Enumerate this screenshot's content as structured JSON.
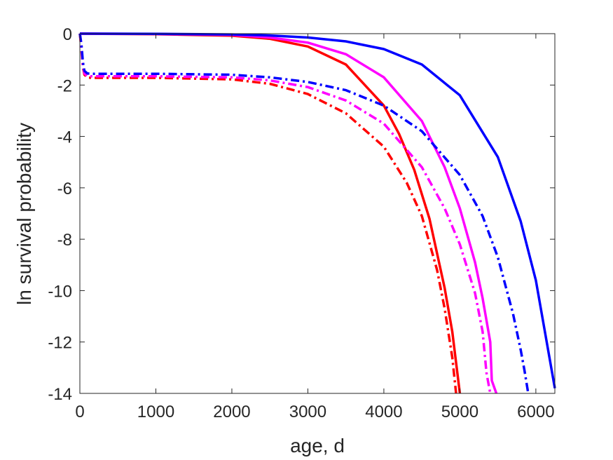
{
  "chart_data": {
    "type": "line",
    "title": "",
    "xlabel": "age, d",
    "ylabel": "ln survival probability",
    "xlim": [
      0,
      6250
    ],
    "ylim": [
      -14,
      0
    ],
    "xticks": [
      0,
      1000,
      2000,
      3000,
      4000,
      5000,
      6000
    ],
    "xtick_labels": [
      "0",
      "1000",
      "2000",
      "3000",
      "4000",
      "5000",
      "6000"
    ],
    "yticks": [
      0,
      -2,
      -4,
      -6,
      -8,
      -10,
      -12,
      -14
    ],
    "ytick_labels": [
      "0",
      "-2",
      "-4",
      "-6",
      "-8",
      "-10",
      "-12",
      "-14"
    ],
    "grid": false,
    "legend": "none",
    "series": [
      {
        "color": "#ff0000",
        "style": "solid",
        "x": [
          0,
          1000,
          2000,
          2500,
          3000,
          3500,
          4000,
          4200,
          4400,
          4600,
          4800,
          4900,
          5000
        ],
        "y": [
          0,
          -0.02,
          -0.08,
          -0.2,
          -0.5,
          -1.2,
          -2.8,
          -3.9,
          -5.3,
          -7.2,
          -9.9,
          -11.6,
          -14
        ]
      },
      {
        "color": "#ff00ff",
        "style": "solid",
        "x": [
          0,
          1000,
          2000,
          2500,
          3000,
          3500,
          4000,
          4500,
          4800,
          5000,
          5200,
          5300,
          5400,
          5420,
          5480
        ],
        "y": [
          0,
          -0.01,
          -0.05,
          -0.15,
          -0.35,
          -0.8,
          -1.7,
          -3.4,
          -5.2,
          -6.8,
          -8.9,
          -10.3,
          -12.0,
          -13.5,
          -14
        ]
      },
      {
        "color": "#0000ff",
        "style": "solid",
        "x": [
          0,
          1000,
          2000,
          2500,
          3000,
          3500,
          4000,
          4500,
          5000,
          5500,
          5800,
          6000,
          6250
        ],
        "y": [
          0,
          -0.005,
          -0.03,
          -0.07,
          -0.15,
          -0.3,
          -0.6,
          -1.2,
          -2.4,
          -4.8,
          -7.3,
          -9.6,
          -13.8
        ]
      },
      {
        "color": "#ff0000",
        "style": "dashdot",
        "x": [
          0,
          20,
          40,
          60,
          100,
          150,
          1000,
          2000,
          2500,
          3000,
          3500,
          4000,
          4300,
          4500,
          4700,
          4800,
          4900,
          4950
        ],
        "y": [
          0,
          -0.6,
          -1.3,
          -1.6,
          -1.7,
          -1.72,
          -1.72,
          -1.78,
          -1.95,
          -2.35,
          -3.1,
          -4.4,
          -5.8,
          -7.1,
          -9.2,
          -10.7,
          -12.6,
          -14
        ]
      },
      {
        "color": "#ff00ff",
        "style": "dashdot",
        "x": [
          0,
          20,
          40,
          60,
          100,
          150,
          1000,
          2000,
          2500,
          3000,
          3500,
          4000,
          4500,
          4800,
          5000,
          5200,
          5300,
          5350,
          5400
        ],
        "y": [
          0,
          -0.5,
          -1.2,
          -1.55,
          -1.65,
          -1.66,
          -1.66,
          -1.7,
          -1.82,
          -2.08,
          -2.6,
          -3.5,
          -5.2,
          -6.8,
          -8.2,
          -10.1,
          -11.6,
          -13.2,
          -14
        ]
      },
      {
        "color": "#0000ff",
        "style": "dashdot",
        "x": [
          0,
          20,
          40,
          60,
          100,
          150,
          1000,
          2000,
          2500,
          3000,
          3500,
          4000,
          4500,
          5000,
          5300,
          5500,
          5700,
          5800,
          5850,
          5900
        ],
        "y": [
          0,
          -0.4,
          -1.1,
          -1.45,
          -1.55,
          -1.56,
          -1.56,
          -1.6,
          -1.7,
          -1.88,
          -2.2,
          -2.8,
          -3.8,
          -5.5,
          -7.1,
          -8.7,
          -10.9,
          -12.3,
          -13.1,
          -14
        ]
      }
    ]
  }
}
